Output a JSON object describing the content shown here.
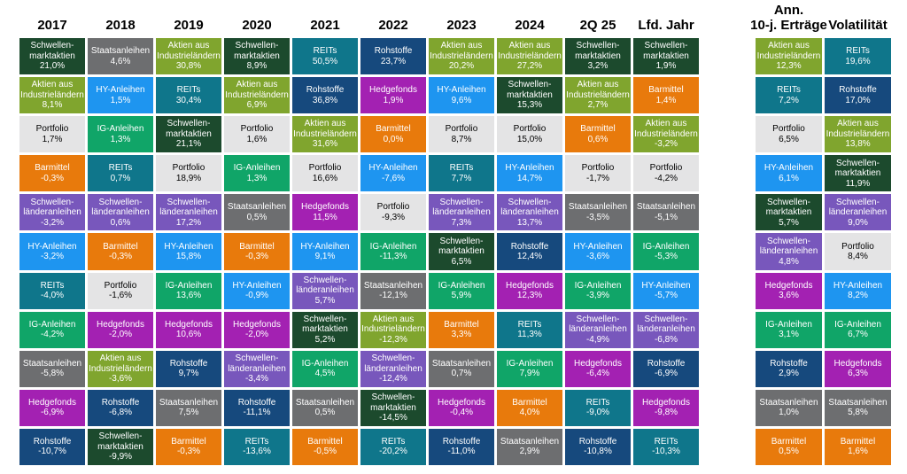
{
  "chart_data": {
    "type": "table",
    "description": "Asset class returns quilt (ranked best to worst per column)",
    "assets": {
      "emeq": {
        "label": "Schwellen-\nmarktaktien",
        "color": "#1C4A2D",
        "text_color": "#ffffff"
      },
      "dmeq": {
        "label": "Aktien aus\nIndustrieländern",
        "color": "#80A52E",
        "text_color": "#ffffff"
      },
      "govt": {
        "label": "Staatsanleihen",
        "color": "#6D6E70",
        "text_color": "#ffffff"
      },
      "hy": {
        "label": "HY-Anleihen",
        "color": "#1E95F0",
        "text_color": "#ffffff"
      },
      "ig": {
        "label": "IG-Anleihen",
        "color": "#10A568",
        "text_color": "#ffffff"
      },
      "reits": {
        "label": "REITs",
        "color": "#0F768B",
        "text_color": "#ffffff"
      },
      "cmdty": {
        "label": "Rohstoffe",
        "color": "#16497D",
        "text_color": "#ffffff"
      },
      "hf": {
        "label": "Hedgefonds",
        "color": "#A321B2",
        "text_color": "#ffffff"
      },
      "port": {
        "label": "Portfolio",
        "color": "#E4E4E5",
        "text_color": "#000000"
      },
      "cash": {
        "label": "Barmittel",
        "color": "#E87A0C",
        "text_color": "#ffffff"
      },
      "embd": {
        "label": "Schwellen-\nländeranleihen",
        "color": "#7857BC",
        "text_color": "#ffffff"
      }
    },
    "year_columns": [
      {
        "header": "2017",
        "cells": [
          [
            "emeq",
            "21,0%"
          ],
          [
            "dmeq",
            "8,1%"
          ],
          [
            "port",
            "1,7%"
          ],
          [
            "cash",
            "-0,3%"
          ],
          [
            "embd",
            "-3,2%"
          ],
          [
            "hy",
            "-3,2%"
          ],
          [
            "reits",
            "-4,0%"
          ],
          [
            "ig",
            "-4,2%"
          ],
          [
            "govt",
            "-5,8%"
          ],
          [
            "hf",
            "-6,9%"
          ],
          [
            "cmdty",
            "-10,7%"
          ]
        ]
      },
      {
        "header": "2018",
        "cells": [
          [
            "govt",
            "4,6%"
          ],
          [
            "hy",
            "1,5%"
          ],
          [
            "ig",
            "1,3%"
          ],
          [
            "reits",
            "0,7%"
          ],
          [
            "embd",
            "0,6%"
          ],
          [
            "cash",
            "-0,3%"
          ],
          [
            "port",
            "-1,6%"
          ],
          [
            "hf",
            "-2,0%"
          ],
          [
            "dmeq",
            "-3,6%"
          ],
          [
            "cmdty",
            "-6,8%"
          ],
          [
            "emeq",
            "-9,9%"
          ]
        ]
      },
      {
        "header": "2019",
        "cells": [
          [
            "dmeq",
            "30,8%"
          ],
          [
            "reits",
            "30,4%"
          ],
          [
            "emeq",
            "21,1%"
          ],
          [
            "port",
            "18,9%"
          ],
          [
            "embd",
            "17,2%"
          ],
          [
            "hy",
            "15,8%"
          ],
          [
            "ig",
            "13,6%"
          ],
          [
            "hf",
            "10,6%"
          ],
          [
            "cmdty",
            "9,7%"
          ],
          [
            "govt",
            "7,5%"
          ],
          [
            "cash",
            "-0,3%"
          ]
        ]
      },
      {
        "header": "2020",
        "cells": [
          [
            "emeq",
            "8,9%"
          ],
          [
            "dmeq",
            "6,9%"
          ],
          [
            "port",
            "1,6%"
          ],
          [
            "ig",
            "1,3%"
          ],
          [
            "govt",
            "0,5%"
          ],
          [
            "cash",
            "-0,3%"
          ],
          [
            "hy",
            "-0,9%"
          ],
          [
            "hf",
            "-2,0%"
          ],
          [
            "embd",
            "-3,4%"
          ],
          [
            "cmdty",
            "-11,1%"
          ],
          [
            "reits",
            "-13,6%"
          ]
        ]
      },
      {
        "header": "2021",
        "cells": [
          [
            "reits",
            "50,5%"
          ],
          [
            "cmdty",
            "36,8%"
          ],
          [
            "dmeq",
            "31,6%"
          ],
          [
            "port",
            "16,6%"
          ],
          [
            "hf",
            "11,5%"
          ],
          [
            "hy",
            "9,1%"
          ],
          [
            "embd",
            "5,7%"
          ],
          [
            "emeq",
            "5,2%"
          ],
          [
            "ig",
            "4,5%"
          ],
          [
            "govt",
            "0,5%"
          ],
          [
            "cash",
            "-0,5%"
          ]
        ]
      },
      {
        "header": "2022",
        "cells": [
          [
            "cmdty",
            "23,7%"
          ],
          [
            "hf",
            "1,9%"
          ],
          [
            "cash",
            "0,0%"
          ],
          [
            "hy",
            "-7,6%"
          ],
          [
            "port",
            "-9,3%"
          ],
          [
            "ig",
            "-11,3%"
          ],
          [
            "govt",
            "-12,1%"
          ],
          [
            "dmeq",
            "-12,3%"
          ],
          [
            "embd",
            "-12,4%"
          ],
          [
            "emeq",
            "-14,5%"
          ],
          [
            "reits",
            "-20,2%"
          ]
        ]
      },
      {
        "header": "2023",
        "cells": [
          [
            "dmeq",
            "20,2%"
          ],
          [
            "hy",
            "9,6%"
          ],
          [
            "port",
            "8,7%"
          ],
          [
            "reits",
            "7,7%"
          ],
          [
            "embd",
            "7,3%"
          ],
          [
            "emeq",
            "6,5%"
          ],
          [
            "ig",
            "5,9%"
          ],
          [
            "cash",
            "3,3%"
          ],
          [
            "govt",
            "0,7%"
          ],
          [
            "hf",
            "-0,4%"
          ],
          [
            "cmdty",
            "-11,0%"
          ]
        ]
      },
      {
        "header": "2024",
        "cells": [
          [
            "dmeq",
            "27,2%"
          ],
          [
            "emeq",
            "15,3%"
          ],
          [
            "port",
            "15,0%"
          ],
          [
            "hy",
            "14,7%"
          ],
          [
            "embd",
            "13,7%"
          ],
          [
            "cmdty",
            "12,4%"
          ],
          [
            "hf",
            "12,3%"
          ],
          [
            "reits",
            "11,3%"
          ],
          [
            "ig",
            "7,9%"
          ],
          [
            "cash",
            "4,0%"
          ],
          [
            "govt",
            "2,9%"
          ]
        ]
      },
      {
        "header": "2Q 25",
        "cells": [
          [
            "emeq",
            "3,2%"
          ],
          [
            "dmeq",
            "2,7%"
          ],
          [
            "cash",
            "0,6%"
          ],
          [
            "port",
            "-1,7%"
          ],
          [
            "govt",
            "-3,5%"
          ],
          [
            "hy",
            "-3,6%"
          ],
          [
            "ig",
            "-3,9%"
          ],
          [
            "embd",
            "-4,9%"
          ],
          [
            "hf",
            "-6,4%"
          ],
          [
            "reits",
            "-9,0%"
          ],
          [
            "cmdty",
            "-10,8%"
          ]
        ]
      },
      {
        "header": "Lfd. Jahr",
        "cells": [
          [
            "emeq",
            "1,9%"
          ],
          [
            "cash",
            "1,4%"
          ],
          [
            "dmeq",
            "-3,2%"
          ],
          [
            "port",
            "-4,2%"
          ],
          [
            "govt",
            "-5,1%"
          ],
          [
            "ig",
            "-5,3%"
          ],
          [
            "hy",
            "-5,7%"
          ],
          [
            "embd",
            "-6,8%"
          ],
          [
            "cmdty",
            "-6,9%"
          ],
          [
            "hf",
            "-9,8%"
          ],
          [
            "reits",
            "-10,3%"
          ]
        ]
      },
      {
        "header": "",
        "group": "stat",
        "header_line1": "Ann.",
        "header_line2": "10-j. Erträge",
        "cells": [
          [
            "dmeq",
            "12,3%"
          ],
          [
            "reits",
            "7,2%"
          ],
          [
            "port",
            "6,5%"
          ],
          [
            "hy",
            "6,1%"
          ],
          [
            "emeq",
            "5,7%"
          ],
          [
            "embd",
            "4,8%"
          ],
          [
            "hf",
            "3,6%"
          ],
          [
            "ig",
            "3,1%"
          ],
          [
            "cmdty",
            "2,9%"
          ],
          [
            "govt",
            "1,0%"
          ],
          [
            "cash",
            "0,5%"
          ]
        ]
      },
      {
        "header": "",
        "group": "stat",
        "header_line1": "",
        "header_line2": "Volatilität",
        "cells": [
          [
            "reits",
            "19,6%"
          ],
          [
            "cmdty",
            "17,0%"
          ],
          [
            "dmeq",
            "13,8%"
          ],
          [
            "emeq",
            "11,9%"
          ],
          [
            "embd",
            "9,0%"
          ],
          [
            "port",
            "8,4%"
          ],
          [
            "hy",
            "8,2%"
          ],
          [
            "ig",
            "6,7%"
          ],
          [
            "hf",
            "6,3%"
          ],
          [
            "govt",
            "5,8%"
          ],
          [
            "cash",
            "1,6%"
          ]
        ]
      }
    ]
  }
}
